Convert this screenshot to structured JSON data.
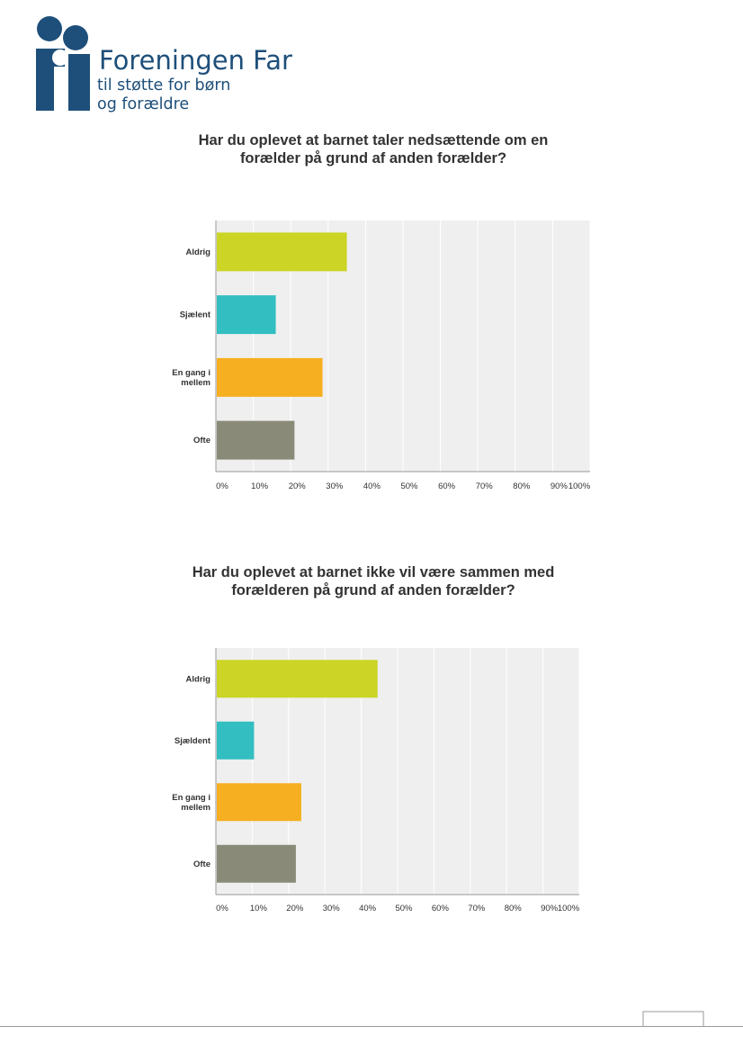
{
  "header": {
    "logo_name": "Foreningen Far",
    "logo_tagline_1": "til støtte for børn",
    "logo_tagline_2": "og forældre"
  },
  "colors": {
    "brand": "#1e4f7a",
    "plot_background": "#efefef",
    "gridline": "#ffffff",
    "axis": "#999999"
  },
  "chart_data": [
    {
      "type": "bar",
      "orientation": "horizontal",
      "title": "Har du oplevet at barnet taler nedsættende om en forælder på grund af anden forælder?",
      "categories": [
        "Aldrig",
        "Sjælent",
        "En gang i mellem",
        "Ofte"
      ],
      "values": [
        35,
        16,
        28.5,
        21
      ],
      "colors": [
        "#ccd425",
        "#33bec1",
        "#f6af20",
        "#8a8a78"
      ],
      "xlim": [
        0,
        100
      ],
      "xticks": [
        "0%",
        "10%",
        "20%",
        "30%",
        "40%",
        "50%",
        "60%",
        "70%",
        "80%",
        "90%",
        "100%"
      ],
      "grid": true
    },
    {
      "type": "bar",
      "orientation": "horizontal",
      "title": "Har du oplevet at barnet ikke vil være sammen med forælderen på grund af anden forælder?",
      "categories": [
        "Aldrig",
        "Sjældent",
        "En gang i mellem",
        "Ofte"
      ],
      "values": [
        44.5,
        10.5,
        23.5,
        22
      ],
      "colors": [
        "#ccd425",
        "#33bec1",
        "#f6af20",
        "#8a8a78"
      ],
      "xlim": [
        0,
        100
      ],
      "xticks": [
        "0%",
        "10%",
        "20%",
        "30%",
        "40%",
        "50%",
        "60%",
        "70%",
        "80%",
        "90%",
        "100%"
      ],
      "grid": true
    }
  ]
}
